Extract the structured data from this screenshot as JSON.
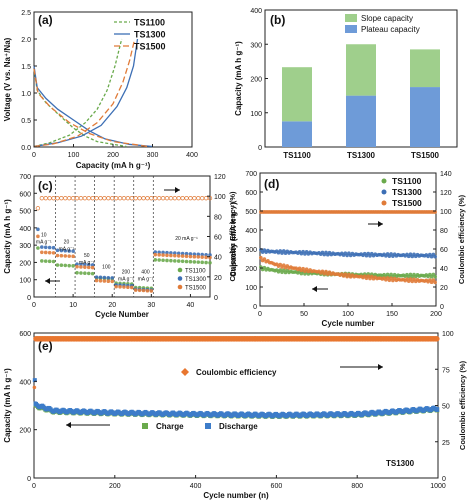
{
  "chart_data": [
    {
      "panel": "(a)",
      "type": "line",
      "xlabel": "Capacity (mA h g⁻¹)",
      "ylabel": "Voltage (V vs. Na⁺/Na)",
      "xlim": [
        0,
        400
      ],
      "ylim": [
        0,
        2.5
      ],
      "xticks": [
        0,
        100,
        200,
        300,
        400
      ],
      "yticks": [
        0.0,
        0.5,
        1.0,
        1.5,
        2.0,
        2.5
      ],
      "legend_position": "top-right",
      "series": [
        {
          "name": "TS1100",
          "color": "#6aaa4c",
          "dash": "3,2",
          "discharge": [
            [
              0,
              1.45
            ],
            [
              8,
              1.05
            ],
            [
              30,
              0.82
            ],
            [
              70,
              0.55
            ],
            [
              100,
              0.35
            ],
            [
              130,
              0.2
            ],
            [
              160,
              0.1
            ],
            [
              200,
              0.05
            ],
            [
              234,
              0.01
            ]
          ],
          "charge": [
            [
              0,
              0.01
            ],
            [
              40,
              0.08
            ],
            [
              90,
              0.22
            ],
            [
              130,
              0.45
            ],
            [
              160,
              0.7
            ],
            [
              185,
              1.05
            ],
            [
              205,
              1.5
            ],
            [
              222,
              2.0
            ]
          ]
        },
        {
          "name": "TS1300",
          "color": "#3d6fb5",
          "dash": "",
          "discharge": [
            [
              0,
              1.5
            ],
            [
              8,
              1.1
            ],
            [
              30,
              0.9
            ],
            [
              60,
              0.7
            ],
            [
              100,
              0.5
            ],
            [
              140,
              0.3
            ],
            [
              180,
              0.15
            ],
            [
              240,
              0.05
            ],
            [
              300,
              0.01
            ]
          ],
          "charge": [
            [
              0,
              0.01
            ],
            [
              60,
              0.08
            ],
            [
              120,
              0.2
            ],
            [
              170,
              0.4
            ],
            [
              210,
              0.75
            ],
            [
              235,
              1.1
            ],
            [
              252,
              1.5
            ],
            [
              262,
              2.0
            ]
          ]
        },
        {
          "name": "TS1500",
          "color": "#e07b39",
          "dash": "6,3",
          "discharge": [
            [
              0,
              1.45
            ],
            [
              10,
              1.0
            ],
            [
              40,
              0.75
            ],
            [
              90,
              0.45
            ],
            [
              140,
              0.25
            ],
            [
              200,
              0.1
            ],
            [
              260,
              0.04
            ],
            [
              287,
              0.01
            ]
          ],
          "charge": [
            [
              0,
              0.01
            ],
            [
              50,
              0.06
            ],
            [
              110,
              0.2
            ],
            [
              160,
              0.45
            ],
            [
              200,
              0.8
            ],
            [
              225,
              1.2
            ],
            [
              242,
              1.6
            ],
            [
              255,
              2.0
            ]
          ]
        }
      ]
    },
    {
      "panel": "(b)",
      "type": "bar",
      "ylabel": "Capacity (mA h g⁻¹)",
      "ylim": [
        0,
        400
      ],
      "yticks": [
        0,
        100,
        200,
        300,
        400
      ],
      "categories": [
        "TS1100",
        "TS1300",
        "TS1500"
      ],
      "series": [
        {
          "name": "Plateau capacity",
          "color": "#6e9bd8",
          "values": [
            75,
            150,
            175
          ]
        },
        {
          "name": "Slope capacity",
          "color": "#9fcf8c",
          "values": [
            158,
            150,
            110
          ]
        }
      ],
      "legend_position": "top-right"
    },
    {
      "panel": "(c)",
      "type": "scatter",
      "xlabel": "Cycle Number",
      "ylabel": "Capacity (mA h g⁻¹)",
      "y2label": "Coulombic Efficiency (%)",
      "xlim": [
        0,
        45
      ],
      "ylim": [
        0,
        700
      ],
      "y2lim": [
        0,
        120
      ],
      "xticks": [
        0,
        10,
        20,
        30,
        40
      ],
      "yticks": [
        0,
        100,
        200,
        300,
        400,
        500,
        600,
        700
      ],
      "y2ticks": [
        0,
        20,
        40,
        60,
        80,
        100,
        120
      ],
      "rate_labels": [
        {
          "x": 2.5,
          "y": 350,
          "lines": [
            "10",
            "mA g⁻¹"
          ]
        },
        {
          "x": 8.3,
          "y": 310,
          "lines": [
            "20",
            "mA g⁻¹"
          ]
        },
        {
          "x": 13.5,
          "y": 230,
          "lines": [
            "50",
            "mA g⁻¹"
          ]
        },
        {
          "x": 18.5,
          "y": 165,
          "lines": [
            "100"
          ]
        },
        {
          "x": 23.5,
          "y": 135,
          "lines": [
            "200",
            "mA g⁻¹"
          ]
        },
        {
          "x": 28.5,
          "y": 135,
          "lines": [
            "400",
            "mA g⁻¹"
          ]
        },
        {
          "x": 39,
          "y": 330,
          "lines": [
            "20 mA g⁻¹"
          ]
        }
      ],
      "segment_boundaries": [
        6,
        11,
        16,
        21,
        26,
        31
      ],
      "capacity_series": [
        {
          "name": "TS1100",
          "color": "#6aaa4c",
          "levels": [
            {
              "from": 1,
              "to": 5,
              "value": 210
            },
            {
              "from": 6,
              "to": 10,
              "value": 185
            },
            {
              "from": 11,
              "to": 15,
              "value": 140
            },
            {
              "from": 16,
              "to": 20,
              "value": 110
            },
            {
              "from": 21,
              "to": 25,
              "value": 80
            },
            {
              "from": 26,
              "to": 30,
              "value": 55
            },
            {
              "from": 31,
              "to": 45,
              "value": 215
            }
          ]
        },
        {
          "name": "TS1300",
          "color": "#3d6fb5",
          "levels": [
            {
              "from": 1,
              "to": 5,
              "value": 290
            },
            {
              "from": 6,
              "to": 10,
              "value": 270
            },
            {
              "from": 11,
              "to": 15,
              "value": 190
            },
            {
              "from": 16,
              "to": 20,
              "value": 115
            },
            {
              "from": 21,
              "to": 25,
              "value": 70
            },
            {
              "from": 26,
              "to": 30,
              "value": 45
            },
            {
              "from": 31,
              "to": 45,
              "value": 260
            }
          ]
        },
        {
          "name": "TS1500",
          "color": "#e07b39",
          "levels": [
            {
              "from": 1,
              "to": 5,
              "value": 260
            },
            {
              "from": 6,
              "to": 10,
              "value": 240
            },
            {
              "from": 11,
              "to": 15,
              "value": 175
            },
            {
              "from": 16,
              "to": 20,
              "value": 95
            },
            {
              "from": 21,
              "to": 25,
              "value": 60
            },
            {
              "from": 26,
              "to": 30,
              "value": 40
            },
            {
              "from": 31,
              "to": 45,
              "value": 245
            }
          ]
        }
      ],
      "ce_percent": 98,
      "legend_position": "bottom-right"
    },
    {
      "panel": "(d)",
      "type": "scatter",
      "xlabel": "Cycle number",
      "ylabel": "Capacity (mA h g⁻¹)",
      "y2label": "Coulombic efficiency (%)",
      "xlim": [
        0,
        200
      ],
      "ylim": [
        0,
        700
      ],
      "y2lim": [
        0,
        140
      ],
      "xticks": [
        0,
        50,
        100,
        150,
        200
      ],
      "yticks": [
        0,
        100,
        200,
        300,
        400,
        500,
        600,
        700
      ],
      "y2ticks": [
        0,
        20,
        40,
        60,
        80,
        100,
        120,
        140
      ],
      "legend_position": "top-right",
      "series": [
        {
          "name": "TS1100",
          "color": "#6aaa4c",
          "capacity": [
            [
              0,
              200
            ],
            [
              20,
              185
            ],
            [
              50,
              175
            ],
            [
              100,
              165
            ],
            [
              150,
              160
            ],
            [
              200,
              160
            ]
          ]
        },
        {
          "name": "TS1300",
          "color": "#3d6fb5",
          "capacity": [
            [
              0,
              290
            ],
            [
              20,
              285
            ],
            [
              50,
              280
            ],
            [
              100,
              272
            ],
            [
              150,
              268
            ],
            [
              200,
              265
            ]
          ]
        },
        {
          "name": "TS1500",
          "color": "#e07b39",
          "capacity": [
            [
              0,
              250
            ],
            [
              20,
              215
            ],
            [
              50,
              190
            ],
            [
              100,
              160
            ],
            [
              150,
              140
            ],
            [
              200,
              130
            ]
          ]
        }
      ],
      "ce_percent": 99
    },
    {
      "panel": "(e)",
      "type": "scatter",
      "xlabel": "Cycle number (n)",
      "ylabel": "Capacity (mA h g⁻¹)",
      "y2label": "Coulombic efficiency (%)",
      "xlim": [
        0,
        1000
      ],
      "ylim": [
        0,
        600
      ],
      "y2lim": [
        0,
        100
      ],
      "xticks": [
        0,
        200,
        400,
        600,
        800,
        1000
      ],
      "yticks": [
        0,
        200,
        400,
        600
      ],
      "y2ticks": [
        0,
        25,
        50,
        75,
        100
      ],
      "annotation": "TS1300",
      "legend": {
        "ce": "Coulombic efficiency",
        "charge": "Charge",
        "discharge": "Discharge"
      },
      "series": [
        {
          "name": "Charge",
          "color": "#6aaa4c",
          "capacity": [
            [
              0,
              300
            ],
            [
              50,
              275
            ],
            [
              200,
              268
            ],
            [
              400,
              262
            ],
            [
              600,
              258
            ],
            [
              800,
              262
            ],
            [
              1000,
              285
            ]
          ]
        },
        {
          "name": "Discharge",
          "color": "#3d7cc9",
          "capacity": [
            [
              0,
              305
            ],
            [
              50,
              278
            ],
            [
              200,
              270
            ],
            [
              400,
              264
            ],
            [
              600,
              260
            ],
            [
              800,
              264
            ],
            [
              1000,
              287
            ]
          ]
        },
        {
          "name": "Coulombic efficiency",
          "color": "#e8762f",
          "ce_percent": 100
        }
      ]
    }
  ]
}
